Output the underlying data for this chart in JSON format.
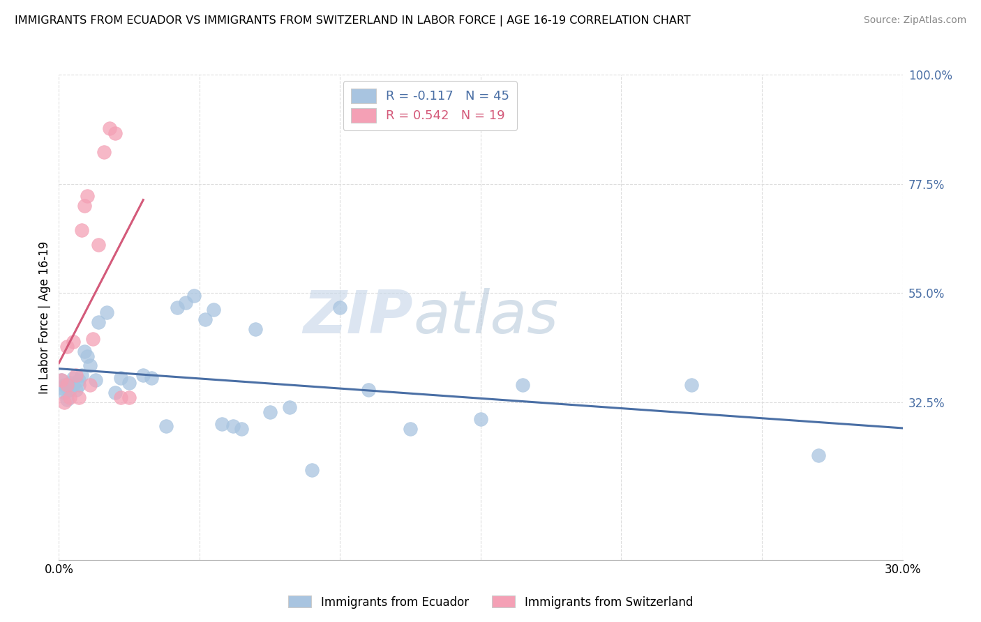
{
  "title": "IMMIGRANTS FROM ECUADOR VS IMMIGRANTS FROM SWITZERLAND IN LABOR FORCE | AGE 16-19 CORRELATION CHART",
  "source": "Source: ZipAtlas.com",
  "ylabel": "In Labor Force | Age 16-19",
  "x_min": 0.0,
  "x_max": 0.3,
  "y_min": 0.0,
  "y_max": 1.0,
  "x_ticks": [
    0.0,
    0.05,
    0.1,
    0.15,
    0.2,
    0.25,
    0.3
  ],
  "y_ticks": [
    0.325,
    0.55,
    0.775,
    1.0
  ],
  "y_tick_labels": [
    "32.5%",
    "55.0%",
    "77.5%",
    "100.0%"
  ],
  "ecuador_color": "#a8c4e0",
  "switzerland_color": "#f4a0b5",
  "ecuador_R": -0.117,
  "ecuador_N": 45,
  "switzerland_R": 0.542,
  "switzerland_N": 19,
  "ecuador_line_color": "#4a6fa5",
  "switzerland_line_color": "#d45a7a",
  "watermark_zip": "ZIP",
  "watermark_atlas": "atlas",
  "legend_label_ecuador": "Immigrants from Ecuador",
  "legend_label_switzerland": "Immigrants from Switzerland",
  "ecuador_x": [
    0.001,
    0.001,
    0.002,
    0.002,
    0.003,
    0.003,
    0.004,
    0.004,
    0.005,
    0.005,
    0.006,
    0.007,
    0.007,
    0.008,
    0.009,
    0.01,
    0.011,
    0.013,
    0.014,
    0.017,
    0.02,
    0.022,
    0.025,
    0.03,
    0.033,
    0.038,
    0.042,
    0.045,
    0.048,
    0.052,
    0.055,
    0.058,
    0.062,
    0.065,
    0.07,
    0.075,
    0.082,
    0.09,
    0.1,
    0.11,
    0.125,
    0.15,
    0.165,
    0.225,
    0.27
  ],
  "ecuador_y": [
    0.37,
    0.355,
    0.345,
    0.36,
    0.33,
    0.355,
    0.35,
    0.365,
    0.36,
    0.375,
    0.35,
    0.37,
    0.36,
    0.38,
    0.43,
    0.42,
    0.4,
    0.37,
    0.49,
    0.51,
    0.345,
    0.375,
    0.365,
    0.38,
    0.375,
    0.275,
    0.52,
    0.53,
    0.545,
    0.495,
    0.515,
    0.28,
    0.275,
    0.27,
    0.475,
    0.305,
    0.315,
    0.185,
    0.52,
    0.35,
    0.27,
    0.29,
    0.36,
    0.36,
    0.215
  ],
  "switzerland_x": [
    0.001,
    0.002,
    0.003,
    0.003,
    0.004,
    0.005,
    0.006,
    0.007,
    0.008,
    0.009,
    0.01,
    0.011,
    0.012,
    0.014,
    0.016,
    0.018,
    0.02,
    0.022,
    0.025
  ],
  "switzerland_y": [
    0.37,
    0.325,
    0.36,
    0.44,
    0.335,
    0.45,
    0.38,
    0.335,
    0.68,
    0.73,
    0.75,
    0.36,
    0.455,
    0.65,
    0.84,
    0.89,
    0.88,
    0.335,
    0.335
  ]
}
